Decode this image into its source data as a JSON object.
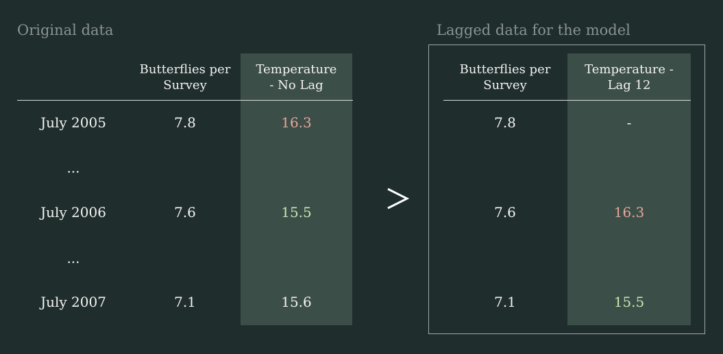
{
  "colors": {
    "background": "#1f2d2d",
    "shaded_column": "#3c4e48",
    "title_gray": "#8a9491",
    "text_white": "#f3f3f0",
    "value_red": "#e8a79b",
    "value_green": "#c9e7b2"
  },
  "left_table": {
    "title": "Original data",
    "header_col1_line1": "Butterflies per",
    "header_col1_line2": "Survey",
    "header_col2_line1": "Temperature",
    "header_col2_line2": "- No Lag",
    "rows": [
      {
        "label": "July 2005",
        "butterflies": "7.8",
        "temperature": "16.3"
      },
      {
        "label": "...",
        "butterflies": "",
        "temperature": ""
      },
      {
        "label": "July 2006",
        "butterflies": "7.6",
        "temperature": "15.5"
      },
      {
        "label": "...",
        "butterflies": "",
        "temperature": ""
      },
      {
        "label": "July 2007",
        "butterflies": "7.1",
        "temperature": "15.6"
      }
    ]
  },
  "arrow_icon": "greater-than-arrow-icon",
  "arrow_glyph": ">",
  "right_table": {
    "title": "Lagged data for the model",
    "header_col1_line1": "Butterflies per",
    "header_col1_line2": "Survey",
    "header_col2_line1": "Temperature -",
    "header_col2_line2": "Lag 12",
    "rows": [
      {
        "butterflies": "7.8",
        "temperature": "-"
      },
      {
        "butterflies": "7.6",
        "temperature": "16.3"
      },
      {
        "butterflies": "7.1",
        "temperature": "15.5"
      }
    ]
  }
}
